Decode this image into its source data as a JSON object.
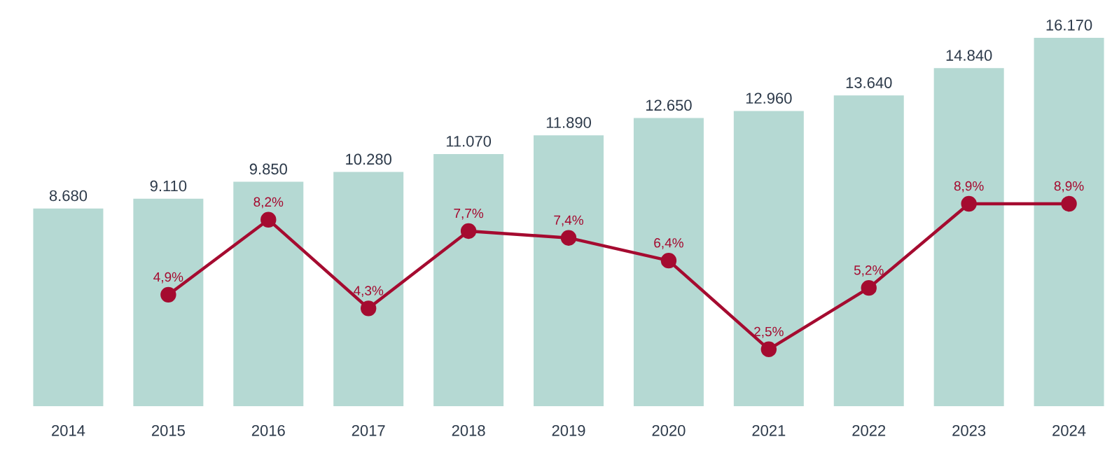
{
  "chart_data": {
    "type": "bar",
    "tick_labels": "x",
    "categories": [
      "2014",
      "2015",
      "2016",
      "2017",
      "2018",
      "2019",
      "2020",
      "2021",
      "2022",
      "2023",
      "2024"
    ],
    "series": [
      {
        "color": "#b5d9d3",
        "values": [
          8680,
          9110,
          9850,
          10280,
          11070,
          11890,
          12650,
          12960,
          13640,
          14840,
          16170
        ],
        "value_labels": [
          "8.680",
          "9.110",
          "9.850",
          "10.280",
          "11.070",
          "11.890",
          "12.650",
          "12.960",
          "13.640",
          "14.840",
          "16.170"
        ]
      },
      {
        "type": "line",
        "axis": "y2",
        "color": "#a50b30",
        "marker": "circle",
        "values": [
          null,
          4.9,
          8.2,
          4.3,
          7.7,
          7.4,
          6.4,
          2.5,
          5.2,
          8.9,
          8.9
        ],
        "value_labels": [
          null,
          "4,9%",
          "8,2%",
          "4,3%",
          "7,7%",
          "7,4%",
          "6,4%",
          "2,5%",
          "5,2%",
          "8,9%",
          "8,9%"
        ]
      }
    ]
  }
}
